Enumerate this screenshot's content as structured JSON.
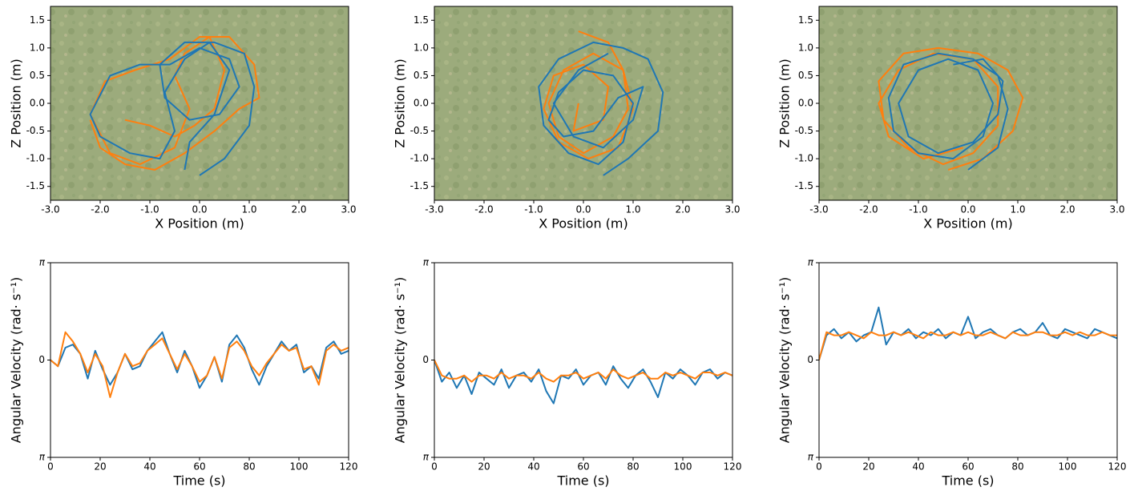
{
  "chart_data": [
    {
      "type": "line",
      "x_label": "X Position (m)",
      "y_label": "Z Position (m)",
      "xlim": [
        -3,
        3
      ],
      "ylim": [
        -1.75,
        1.75
      ],
      "xticks": [
        {
          "value": -3,
          "label": "-3.0"
        },
        {
          "value": -2,
          "label": "-2.0"
        },
        {
          "value": -1,
          "label": "-1.0"
        },
        {
          "value": 0,
          "label": "0.0"
        },
        {
          "value": 1,
          "label": "1.0"
        },
        {
          "value": 2,
          "label": "2.0"
        },
        {
          "value": 3,
          "label": "3.0"
        }
      ],
      "yticks": [
        -1.5,
        {
          "value": -1,
          "label": "-1.0"
        },
        -0.5,
        {
          "value": 0,
          "label": "0.0"
        },
        0.5,
        {
          "value": 1,
          "label": "1.0"
        },
        1.5
      ],
      "series": [
        {
          "color": "#ff7f0e",
          "x": [
            -2.2,
            -2.0,
            -1.5,
            -0.9,
            -0.3,
            0.3,
            0.8,
            1.2,
            1.1,
            0.6,
            0.0,
            -0.6,
            -1.3,
            -1.9,
            -2.2,
            -1.8,
            -1.2,
            -0.5,
            -0.2,
            -0.5,
            -0.3,
            0.2,
            0.5,
            0.3,
            -0.1,
            -0.5,
            -1.0,
            -1.5
          ],
          "values": [
            -0.3,
            -0.8,
            -1.1,
            -1.2,
            -0.9,
            -0.5,
            -0.1,
            0.1,
            0.7,
            1.2,
            1.2,
            0.8,
            0.6,
            0.4,
            -0.2,
            -0.9,
            -1.1,
            -0.8,
            -0.1,
            0.5,
            0.9,
            1.2,
            0.6,
            -0.1,
            -0.4,
            -0.6,
            -0.4,
            -0.3
          ]
        },
        {
          "color": "#1f77b4",
          "x": [
            0.0,
            0.5,
            1.0,
            1.1,
            0.9,
            0.3,
            -0.3,
            -0.8,
            -0.7,
            -0.2,
            0.4,
            0.8,
            0.6,
            0.0,
            -0.6,
            -1.2,
            -1.8,
            -2.2,
            -2.0,
            -1.4,
            -0.8,
            -0.5,
            -0.7,
            -0.3,
            0.2,
            0.6,
            0.3,
            -0.2,
            -0.3
          ],
          "values": [
            -1.3,
            -1.0,
            -0.4,
            0.3,
            0.9,
            1.1,
            1.1,
            0.7,
            0.1,
            -0.3,
            -0.2,
            0.3,
            0.8,
            1.0,
            0.7,
            0.7,
            0.5,
            -0.2,
            -0.6,
            -0.9,
            -1.0,
            -0.5,
            0.2,
            0.8,
            1.1,
            0.6,
            -0.2,
            -0.7,
            -1.2
          ]
        }
      ]
    },
    {
      "type": "line",
      "x_label": "X Position (m)",
      "y_label": "Z Position (m)",
      "xlim": [
        -3,
        3
      ],
      "ylim": [
        -1.75,
        1.75
      ],
      "xticks": [
        {
          "value": -3,
          "label": "-3.0"
        },
        {
          "value": -2,
          "label": "-2.0"
        },
        {
          "value": -1,
          "label": "-1.0"
        },
        {
          "value": 0,
          "label": "0.0"
        },
        {
          "value": 1,
          "label": "1.0"
        },
        {
          "value": 2,
          "label": "2.0"
        },
        {
          "value": 3,
          "label": "3.0"
        }
      ],
      "yticks": [
        -1.5,
        {
          "value": -1,
          "label": "-1.0"
        },
        -0.5,
        {
          "value": 0,
          "label": "0.0"
        },
        0.5,
        {
          "value": 1,
          "label": "1.0"
        },
        1.5
      ],
      "series": [
        {
          "color": "#ff7f0e",
          "x": [
            -0.1,
            0.5,
            0.8,
            0.9,
            0.6,
            0.0,
            -0.5,
            -0.7,
            -0.4,
            0.2,
            0.8,
            1.0,
            0.7,
            0.1,
            -0.5,
            -0.8,
            -0.6,
            0.0,
            0.5,
            0.4,
            -0.2,
            -0.1
          ],
          "values": [
            1.3,
            1.1,
            0.6,
            -0.1,
            -0.6,
            -0.9,
            -0.6,
            0.0,
            0.6,
            0.9,
            0.6,
            -0.1,
            -0.8,
            -1.0,
            -0.7,
            -0.1,
            0.5,
            0.7,
            0.3,
            -0.3,
            -0.5,
            0.0
          ]
        },
        {
          "color": "#1f77b4",
          "x": [
            0.4,
            0.9,
            1.5,
            1.6,
            1.3,
            0.8,
            0.2,
            -0.5,
            -0.9,
            -0.8,
            -0.3,
            0.3,
            0.8,
            1.0,
            0.6,
            0.0,
            -0.5,
            -0.7,
            -0.4,
            0.2,
            0.7,
            1.2,
            1.0,
            0.4,
            -0.2,
            -0.6,
            -0.1,
            0.5
          ],
          "values": [
            -1.3,
            -1.0,
            -0.5,
            0.2,
            0.8,
            1.0,
            1.1,
            0.8,
            0.3,
            -0.4,
            -0.9,
            -1.1,
            -0.7,
            0.0,
            0.5,
            0.6,
            0.2,
            -0.3,
            -0.6,
            -0.5,
            0.1,
            0.3,
            -0.3,
            -0.8,
            -0.6,
            0.0,
            0.6,
            0.9
          ]
        }
      ]
    },
    {
      "type": "line",
      "x_label": "X Position (m)",
      "y_label": "Z Position (m)",
      "xlim": [
        -3,
        3
      ],
      "ylim": [
        -1.75,
        1.75
      ],
      "xticks": [
        {
          "value": -3,
          "label": "-3.0"
        },
        {
          "value": -2,
          "label": "-2.0"
        },
        {
          "value": -1,
          "label": "-1.0"
        },
        {
          "value": 0,
          "label": "0.0"
        },
        {
          "value": 1,
          "label": "1.0"
        },
        {
          "value": 2,
          "label": "2.0"
        },
        {
          "value": 3,
          "label": "3.0"
        }
      ],
      "yticks": [
        -1.5,
        {
          "value": -1,
          "label": "-1.0"
        },
        -0.5,
        {
          "value": 0,
          "label": "0.0"
        },
        0.5,
        {
          "value": 1,
          "label": "1.0"
        },
        1.5
      ],
      "series": [
        {
          "color": "#ff7f0e",
          "x": [
            -0.4,
            0.3,
            0.9,
            1.1,
            0.8,
            0.2,
            -0.6,
            -1.3,
            -1.8,
            -1.7,
            -1.2,
            -0.5,
            0.1,
            0.6,
            0.6,
            0.1,
            -0.7,
            -1.4,
            -1.8,
            -1.6,
            -0.9,
            -0.1
          ],
          "values": [
            -1.2,
            -1.0,
            -0.5,
            0.1,
            0.6,
            0.9,
            1.0,
            0.9,
            0.4,
            -0.3,
            -0.8,
            -1.1,
            -0.9,
            -0.4,
            0.3,
            0.8,
            0.9,
            0.6,
            0.0,
            -0.6,
            -1.0,
            -0.8
          ]
        },
        {
          "color": "#1f77b4",
          "x": [
            0.0,
            0.6,
            0.8,
            0.6,
            0.1,
            -0.6,
            -1.3,
            -1.6,
            -1.5,
            -1.0,
            -0.3,
            0.3,
            0.5,
            0.2,
            -0.4,
            -1.0,
            -1.4,
            -1.2,
            -0.6,
            0.1,
            0.6,
            0.7,
            0.3,
            -0.3
          ],
          "values": [
            -1.2,
            -0.8,
            -0.1,
            0.5,
            0.8,
            0.9,
            0.7,
            0.1,
            -0.5,
            -0.9,
            -1.0,
            -0.6,
            0.0,
            0.6,
            0.8,
            0.6,
            0.0,
            -0.6,
            -0.9,
            -0.7,
            -0.2,
            0.4,
            0.8,
            0.7
          ]
        }
      ]
    },
    {
      "type": "line",
      "x_label": "Time (s)",
      "y_label": "Angular Velocity (rad· s⁻¹)",
      "xlim": [
        0,
        120
      ],
      "ylim": [
        -3.14159,
        3.14159
      ],
      "xticks": [
        0,
        20,
        40,
        60,
        80,
        100,
        120
      ],
      "yticks": [
        {
          "value": -3.14159,
          "label": "π"
        },
        0,
        {
          "value": 3.14159,
          "label": "π"
        }
      ],
      "x": [
        0,
        3,
        6,
        9,
        12,
        15,
        18,
        21,
        24,
        27,
        30,
        33,
        36,
        39,
        42,
        45,
        48,
        51,
        54,
        57,
        60,
        63,
        66,
        69,
        72,
        75,
        78,
        81,
        84,
        87,
        90,
        93,
        96,
        99,
        102,
        105,
        108,
        111,
        114,
        117,
        120
      ],
      "series": [
        {
          "color": "#1f77b4",
          "values": [
            0,
            -0.2,
            0.4,
            0.5,
            0.2,
            -0.6,
            0.3,
            -0.3,
            -0.8,
            -0.4,
            0.2,
            -0.3,
            -0.2,
            0.3,
            0.6,
            0.9,
            0.2,
            -0.4,
            0.3,
            -0.2,
            -0.9,
            -0.5,
            0.1,
            -0.7,
            0.5,
            0.8,
            0.4,
            -0.3,
            -0.8,
            -0.2,
            0.2,
            0.6,
            0.3,
            0.5,
            -0.4,
            -0.2,
            -0.6,
            0.4,
            0.6,
            0.2,
            0.3
          ]
        },
        {
          "color": "#ff7f0e",
          "values": [
            0,
            -0.2,
            0.9,
            0.6,
            0.2,
            -0.4,
            0.2,
            -0.2,
            -1.2,
            -0.4,
            0.2,
            -0.2,
            -0.1,
            0.3,
            0.5,
            0.7,
            0.2,
            -0.3,
            0.2,
            -0.2,
            -0.7,
            -0.5,
            0.1,
            -0.6,
            0.4,
            0.6,
            0.3,
            -0.2,
            -0.5,
            -0.1,
            0.2,
            0.5,
            0.3,
            0.4,
            -0.3,
            -0.2,
            -0.8,
            0.3,
            0.5,
            0.3,
            0.4
          ]
        }
      ]
    },
    {
      "type": "line",
      "x_label": "Time (s)",
      "y_label": "Angular Velocity (rad· s⁻¹)",
      "xlim": [
        0,
        120
      ],
      "ylim": [
        -3.14159,
        3.14159
      ],
      "xticks": [
        0,
        20,
        40,
        60,
        80,
        100,
        120
      ],
      "yticks": [
        {
          "value": -3.14159,
          "label": "π"
        },
        0,
        {
          "value": 3.14159,
          "label": "π"
        }
      ],
      "x": [
        0,
        3,
        6,
        9,
        12,
        15,
        18,
        21,
        24,
        27,
        30,
        33,
        36,
        39,
        42,
        45,
        48,
        51,
        54,
        57,
        60,
        63,
        66,
        69,
        72,
        75,
        78,
        81,
        84,
        87,
        90,
        93,
        96,
        99,
        102,
        105,
        108,
        111,
        114,
        117,
        120
      ],
      "series": [
        {
          "color": "#1f77b4",
          "values": [
            0,
            -0.7,
            -0.4,
            -0.9,
            -0.5,
            -1.1,
            -0.4,
            -0.6,
            -0.8,
            -0.3,
            -0.9,
            -0.5,
            -0.4,
            -0.7,
            -0.3,
            -1.0,
            -1.4,
            -0.5,
            -0.6,
            -0.3,
            -0.8,
            -0.5,
            -0.4,
            -0.8,
            -0.2,
            -0.6,
            -0.9,
            -0.5,
            -0.3,
            -0.7,
            -1.2,
            -0.4,
            -0.6,
            -0.3,
            -0.5,
            -0.8,
            -0.4,
            -0.3,
            -0.6,
            -0.4,
            -0.5
          ]
        },
        {
          "color": "#ff7f0e",
          "values": [
            0,
            -0.5,
            -0.6,
            -0.6,
            -0.5,
            -0.7,
            -0.5,
            -0.5,
            -0.6,
            -0.4,
            -0.6,
            -0.5,
            -0.5,
            -0.6,
            -0.4,
            -0.6,
            -0.7,
            -0.5,
            -0.5,
            -0.4,
            -0.6,
            -0.5,
            -0.4,
            -0.6,
            -0.3,
            -0.5,
            -0.6,
            -0.5,
            -0.4,
            -0.6,
            -0.6,
            -0.4,
            -0.5,
            -0.4,
            -0.5,
            -0.6,
            -0.4,
            -0.4,
            -0.5,
            -0.4,
            -0.5
          ]
        }
      ]
    },
    {
      "type": "line",
      "x_label": "Time (s)",
      "y_label": "Angular Velocity (rad· s⁻¹)",
      "xlim": [
        0,
        120
      ],
      "ylim": [
        -3.14159,
        3.14159
      ],
      "xticks": [
        0,
        20,
        40,
        60,
        80,
        100,
        120
      ],
      "yticks": [
        {
          "value": -3.14159,
          "label": "π"
        },
        0,
        {
          "value": 3.14159,
          "label": "π"
        }
      ],
      "x": [
        0,
        3,
        6,
        9,
        12,
        15,
        18,
        21,
        24,
        27,
        30,
        33,
        36,
        39,
        42,
        45,
        48,
        51,
        54,
        57,
        60,
        63,
        66,
        69,
        72,
        75,
        78,
        81,
        84,
        87,
        90,
        93,
        96,
        99,
        102,
        105,
        108,
        111,
        114,
        117,
        120
      ],
      "series": [
        {
          "color": "#1f77b4",
          "values": [
            0,
            0.8,
            1.0,
            0.7,
            0.9,
            0.6,
            0.8,
            0.9,
            1.7,
            0.5,
            0.9,
            0.8,
            1.0,
            0.7,
            0.9,
            0.8,
            1.0,
            0.7,
            0.9,
            0.8,
            1.4,
            0.7,
            0.9,
            1.0,
            0.8,
            0.7,
            0.9,
            1.0,
            0.8,
            0.9,
            1.2,
            0.8,
            0.7,
            1.0,
            0.9,
            0.8,
            0.7,
            1.0,
            0.9,
            0.8,
            0.7
          ]
        },
        {
          "color": "#ff7f0e",
          "values": [
            0,
            0.9,
            0.8,
            0.8,
            0.9,
            0.8,
            0.7,
            0.9,
            0.8,
            0.8,
            0.9,
            0.8,
            0.9,
            0.8,
            0.7,
            0.9,
            0.8,
            0.8,
            0.9,
            0.8,
            0.9,
            0.8,
            0.8,
            0.9,
            0.8,
            0.7,
            0.9,
            0.8,
            0.8,
            0.9,
            0.9,
            0.8,
            0.8,
            0.9,
            0.8,
            0.9,
            0.8,
            0.8,
            0.9,
            0.8,
            0.8
          ]
        }
      ]
    }
  ]
}
